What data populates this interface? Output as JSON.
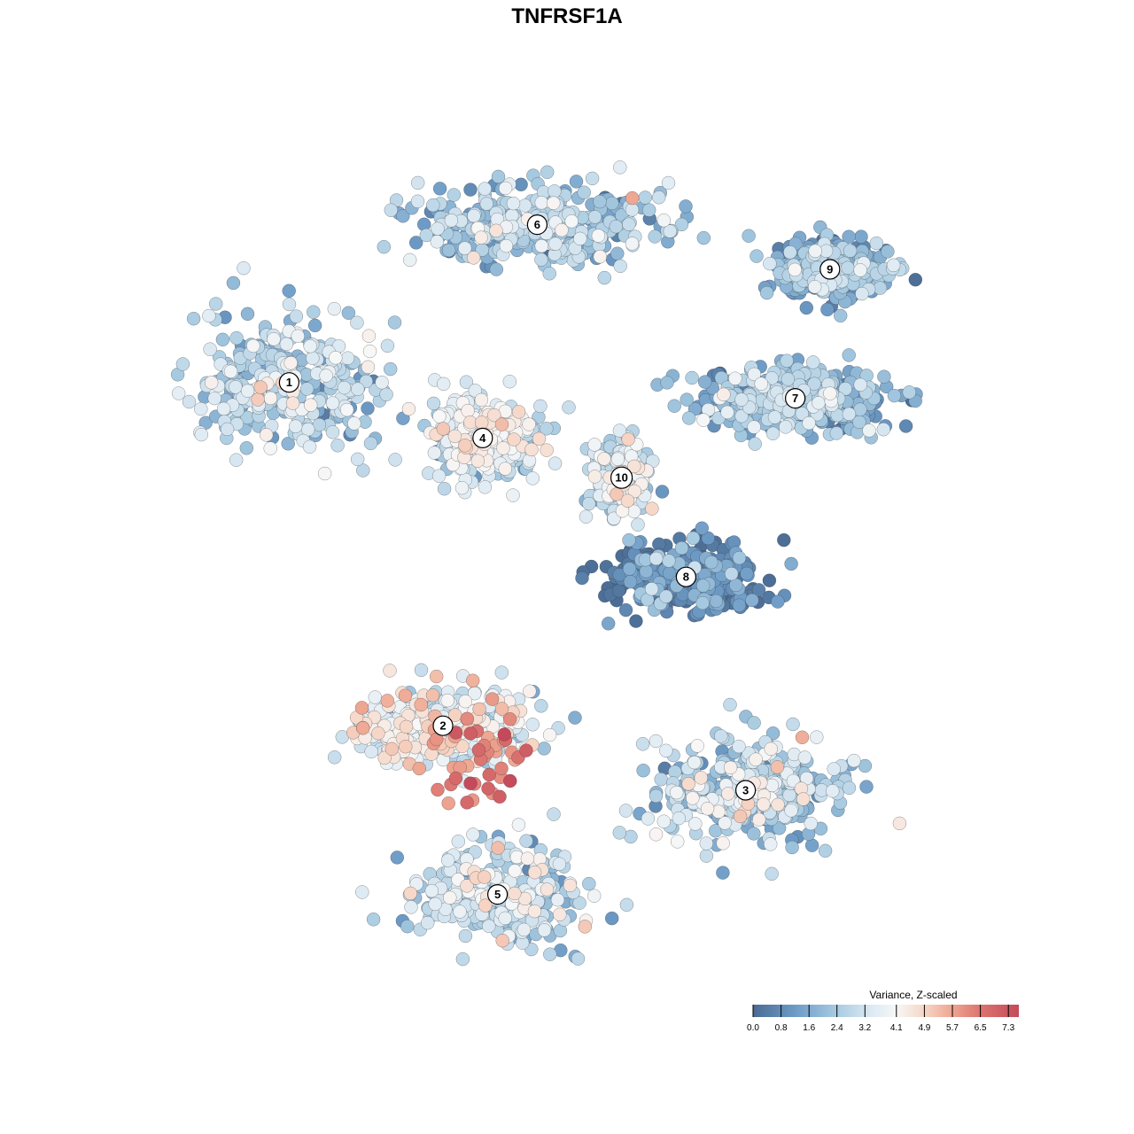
{
  "chart_data": {
    "type": "scatter",
    "title": "TNFRSF1A",
    "colorbar": {
      "title": "Variance, Z-scaled",
      "range": [
        0,
        7.6
      ],
      "ticks": [
        "0.0",
        "0.8",
        "1.6",
        "2.4",
        "3.2",
        "4.1",
        "4.9",
        "5.7",
        "6.5",
        "7.3"
      ],
      "tick_values": [
        0.0,
        0.8,
        1.6,
        2.4,
        3.2,
        4.1,
        4.9,
        5.7,
        6.5,
        7.3
      ],
      "stops": [
        {
          "v": 0.0,
          "color": "#4a6b93"
        },
        {
          "v": 1.2,
          "color": "#6d9bc6"
        },
        {
          "v": 2.4,
          "color": "#a8cbe1"
        },
        {
          "v": 3.4,
          "color": "#ddeaf3"
        },
        {
          "v": 4.1,
          "color": "#f7f7f7"
        },
        {
          "v": 4.9,
          "color": "#f6d6c6"
        },
        {
          "v": 5.7,
          "color": "#eea590"
        },
        {
          "v": 6.5,
          "color": "#dc7470"
        },
        {
          "v": 7.6,
          "color": "#c44a5b"
        }
      ],
      "placement": "bottom-right"
    },
    "clusters": [
      {
        "label": "1",
        "x": -28.0,
        "y": 18.6,
        "level": 2.7,
        "spread": [
          9.5,
          6.5
        ]
      },
      {
        "label": "2",
        "x": -12.5,
        "y": -16.0,
        "level": 3.6,
        "spread": [
          8.0,
          3.5
        ]
      },
      {
        "label": "3",
        "x": 18.0,
        "y": -22.5,
        "level": 2.8,
        "spread": [
          8.5,
          5.0
        ]
      },
      {
        "label": "4",
        "x": -8.5,
        "y": 13.0,
        "level": 3.2,
        "spread": [
          5.0,
          4.0
        ]
      },
      {
        "label": "5",
        "x": -7.0,
        "y": -33.0,
        "level": 2.8,
        "spread": [
          7.5,
          4.5
        ]
      },
      {
        "label": "6",
        "x": -3.0,
        "y": 34.5,
        "level": 2.3,
        "spread": [
          12.0,
          3.5
        ]
      },
      {
        "label": "7",
        "x": 23.0,
        "y": 17.0,
        "level": 2.0,
        "spread": [
          9.0,
          3.0
        ]
      },
      {
        "label": "8",
        "x": 12.0,
        "y": -1.0,
        "level": 0.7,
        "spread": [
          7.0,
          3.0
        ]
      },
      {
        "label": "9",
        "x": 26.5,
        "y": 30.0,
        "level": 1.8,
        "spread": [
          5.0,
          2.5
        ]
      },
      {
        "label": "10",
        "x": 5.5,
        "y": 9.0,
        "level": 2.6,
        "spread": [
          2.5,
          3.0
        ]
      }
    ],
    "x_range": [
      -46,
      46
    ],
    "y_range": [
      -46,
      46
    ],
    "grid": false,
    "axes_visible": false
  }
}
